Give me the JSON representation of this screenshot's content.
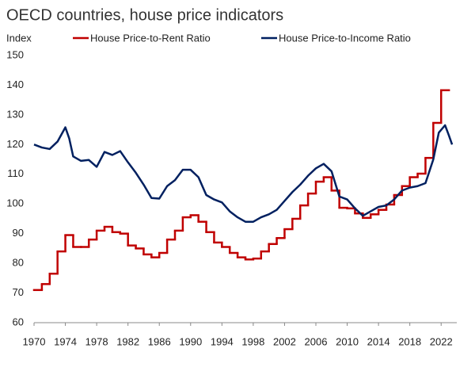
{
  "chart_data": {
    "type": "line",
    "title": "OECD countries, house price indicators",
    "y_label": "Index",
    "xlim": [
      1970,
      2024
    ],
    "ylim": [
      60,
      150
    ],
    "xticks": [
      1970,
      1974,
      1978,
      1982,
      1986,
      1990,
      1994,
      1998,
      2002,
      2006,
      2010,
      2014,
      2018,
      2022
    ],
    "yticks": [
      60,
      70,
      80,
      90,
      100,
      110,
      120,
      130,
      140,
      150
    ],
    "grid": false,
    "legend": "top",
    "series": [
      {
        "name": "House Price-to-Rent Ratio",
        "color": "#c00000",
        "step": true,
        "x": [
          1970,
          1971,
          1972,
          1973,
          1974,
          1975,
          1976,
          1977,
          1978,
          1979,
          1980,
          1981,
          1982,
          1983,
          1984,
          1985,
          1986,
          1987,
          1988,
          1989,
          1990,
          1991,
          1992,
          1993,
          1994,
          1995,
          1996,
          1997,
          1998,
          1999,
          2000,
          2001,
          2002,
          2003,
          2004,
          2005,
          2006,
          2007,
          2008,
          2009,
          2010,
          2011,
          2012,
          2013,
          2014,
          2015,
          2016,
          2017,
          2018,
          2019,
          2020,
          2021,
          2022
        ],
        "values": [
          71,
          73,
          76.5,
          84,
          89.5,
          85.5,
          85.5,
          88,
          91,
          92.3,
          90.5,
          90,
          86,
          85,
          83,
          82,
          83.5,
          88,
          91,
          95.5,
          96.2,
          94,
          90.5,
          87,
          85.5,
          83.5,
          82,
          81.3,
          81.6,
          84,
          86.5,
          88.5,
          91.5,
          95,
          99.5,
          103.5,
          107.5,
          109,
          104.5,
          98.7,
          98.5,
          96.8,
          95.3,
          96.5,
          98,
          99.8,
          103,
          106,
          109,
          110.2,
          115.5,
          127.3,
          138.3
        ]
      },
      {
        "name": "House Price-to-Income Ratio",
        "color": "#002060",
        "step": false,
        "x": [
          1970,
          1971,
          1972,
          1973,
          1974,
          1974.5,
          1975,
          1976,
          1977,
          1978,
          1979,
          1980,
          1981,
          1982,
          1983,
          1984,
          1985,
          1986,
          1987,
          1988,
          1989,
          1990,
          1991,
          1992,
          1993,
          1994,
          1995,
          1996,
          1997,
          1998,
          1999,
          2000,
          2001,
          2002,
          2003,
          2004,
          2005,
          2006,
          2007,
          2008,
          2009,
          2010,
          2011,
          2012,
          2013,
          2014,
          2015,
          2016,
          2017,
          2018,
          2019,
          2020,
          2021,
          2021.7,
          2022.5,
          2023,
          2023.4
        ],
        "values": [
          120,
          119,
          118.5,
          121,
          125.8,
          122,
          116,
          114.5,
          114.8,
          112.5,
          117.5,
          116.5,
          117.8,
          114,
          110.5,
          106.5,
          102,
          101.8,
          106,
          108,
          111.5,
          111.5,
          109,
          103,
          101.5,
          100.5,
          97.5,
          95.5,
          94,
          94,
          95.5,
          96.5,
          98,
          101,
          104,
          106.5,
          109.5,
          112,
          113.5,
          111,
          102.5,
          101.5,
          98.5,
          96,
          97.5,
          99,
          99.5,
          101.5,
          104.5,
          105.5,
          106,
          107,
          115,
          124,
          126.5,
          123,
          120
        ]
      }
    ]
  }
}
